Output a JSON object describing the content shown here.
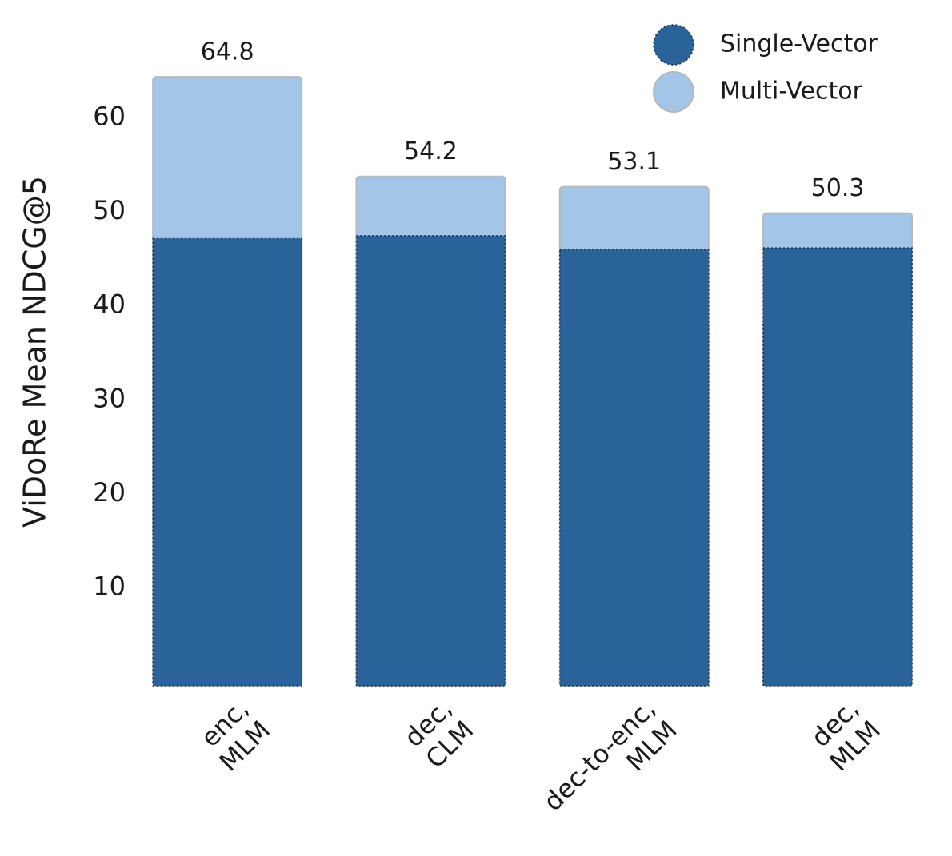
{
  "chart_data": {
    "type": "bar",
    "layout": "overlay",
    "ylabel": "ViDoRe Mean NDCG@5",
    "categories": [
      [
        "enc,",
        "MLM"
      ],
      [
        "dec,",
        "CLM"
      ],
      [
        "dec-to-enc,",
        "MLM"
      ],
      [
        "dec,",
        "MLM"
      ]
    ],
    "series": [
      {
        "name": "Single-Vector",
        "color": "#2a6399",
        "values": [
          47.6,
          47.9,
          46.4,
          46.6
        ]
      },
      {
        "name": "Multi-Vector",
        "color": "#a3c5e8",
        "values": [
          64.8,
          54.2,
          53.1,
          50.3
        ]
      }
    ],
    "ylim": [
      0,
      66
    ],
    "yticks": [
      10,
      20,
      30,
      40,
      50,
      60
    ],
    "grid": false,
    "legend": "upper right"
  }
}
